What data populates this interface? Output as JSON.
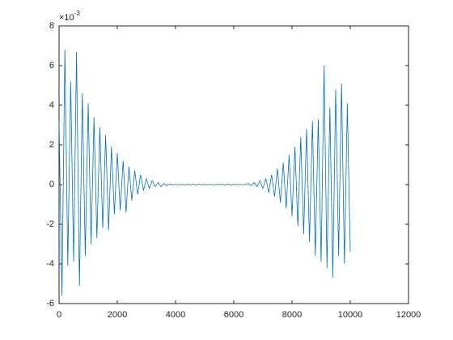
{
  "chart_data": {
    "type": "line",
    "y_exponent": {
      "base": "×10",
      "power": "-3"
    },
    "x": [
      0,
      100,
      200,
      300,
      400,
      500,
      600,
      700,
      800,
      900,
      1000,
      1100,
      1200,
      1300,
      1400,
      1500,
      1600,
      1700,
      1800,
      1900,
      2000,
      2100,
      2200,
      2300,
      2400,
      2500,
      2600,
      2700,
      2800,
      2900,
      3000,
      3100,
      3200,
      3300,
      3400,
      3500,
      3600,
      3700,
      3800,
      3900,
      4000,
      4100,
      4200,
      4300,
      4400,
      4500,
      4600,
      4700,
      4800,
      4900,
      5000,
      5100,
      5200,
      5300,
      5400,
      5500,
      5600,
      5700,
      5800,
      5900,
      6000,
      6100,
      6200,
      6300,
      6400,
      6500,
      6600,
      6700,
      6800,
      6900,
      7000,
      7100,
      7200,
      7300,
      7400,
      7500,
      7600,
      7700,
      7800,
      7900,
      8000,
      8100,
      8200,
      8300,
      8400,
      8500,
      8600,
      8700,
      8800,
      8900,
      9000,
      9100,
      9200,
      9300,
      9400,
      9500,
      9600,
      9700,
      9800,
      9900,
      10000
    ],
    "values": [
      3.2,
      -5.6,
      6.8,
      -4.1,
      5.2,
      -3.9,
      6.7,
      -5.1,
      4.6,
      -3.6,
      4.1,
      -3.0,
      3.4,
      -2.7,
      2.9,
      -2.2,
      2.5,
      -2.3,
      1.9,
      -1.5,
      1.6,
      -1.3,
      1.2,
      -1.4,
      0.9,
      -0.8,
      0.7,
      -0.5,
      0.5,
      -0.3,
      0.3,
      -0.2,
      0.2,
      -0.1,
      0.1,
      -0.1,
      0.05,
      -0.05,
      0.03,
      -0.03,
      0.02,
      -0.02,
      0.02,
      -0.02,
      0.02,
      -0.02,
      0.02,
      -0.02,
      0.02,
      -0.02,
      0.02,
      -0.02,
      0.02,
      -0.02,
      0.02,
      -0.02,
      0.02,
      -0.02,
      0.02,
      -0.02,
      0.02,
      -0.02,
      0.02,
      -0.02,
      0.02,
      0.05,
      -0.05,
      0.1,
      -0.1,
      0.2,
      -0.2,
      0.3,
      -0.4,
      0.5,
      -0.6,
      0.8,
      -0.9,
      1.1,
      -1.2,
      1.5,
      -1.6,
      1.9,
      -2.1,
      2.4,
      -2.5,
      2.8,
      -2.9,
      3.2,
      -3.6,
      3.3,
      -3.9,
      6.0,
      -4.2,
      3.9,
      -4.7,
      4.8,
      -3.6,
      5.1,
      -4.0,
      4.1,
      -3.4
    ],
    "color": "#0072bd",
    "xlim": [
      0,
      12000
    ],
    "xticks": [
      0,
      2000,
      4000,
      6000,
      8000,
      10000,
      12000
    ],
    "ylim": [
      -6,
      8
    ],
    "yticks": [
      -6,
      -4,
      -2,
      0,
      2,
      4,
      6,
      8
    ]
  }
}
